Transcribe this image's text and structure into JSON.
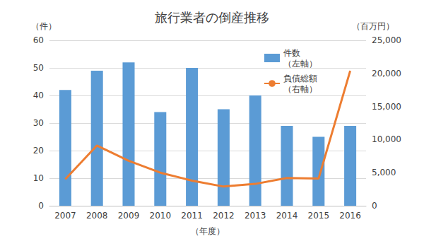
{
  "chart_data": {
    "type": "bar",
    "title": "旅行業者の倒産推移",
    "x_label": "（年度）",
    "y_label": "（件）",
    "y2_label": "（百万円）",
    "categories": [
      "2007",
      "2008",
      "2009",
      "2010",
      "2011",
      "2012",
      "2013",
      "2014",
      "2015",
      "2016"
    ],
    "series": [
      {
        "name": "件数\n（左軸）",
        "type": "bar",
        "color": "#5b9bd5",
        "values": [
          42,
          49,
          52,
          34,
          50,
          35,
          40,
          29,
          25,
          29
        ]
      },
      {
        "name": "負債総額\n（右軸）",
        "type": "line",
        "axis": "y2",
        "color": "#ed7d31",
        "values": [
          4000,
          9100,
          6800,
          5000,
          3800,
          2900,
          3300,
          4200,
          4100,
          20400
        ]
      }
    ],
    "ylim": [
      0,
      60
    ],
    "yticks": [
      0,
      10,
      20,
      30,
      40,
      50,
      60
    ],
    "y2lim": [
      0,
      25000
    ],
    "y2ticks": [
      0,
      {
        "value": 5000,
        "label": "5,000"
      },
      {
        "value": 10000,
        "label": "10,000"
      },
      {
        "value": 15000,
        "label": "15,000"
      },
      {
        "value": 20000,
        "label": "20,000"
      },
      {
        "value": 25000,
        "label": "25,000"
      }
    ],
    "grid": true,
    "legend": "upper right"
  }
}
